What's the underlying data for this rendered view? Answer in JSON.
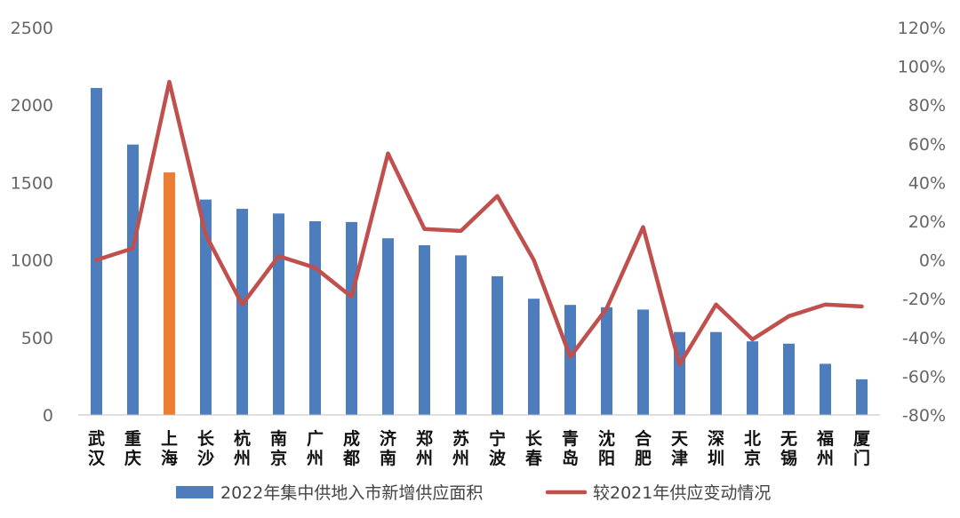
{
  "chart_data": {
    "type": "bar+line",
    "title": "",
    "categories": [
      "武汉",
      "重庆",
      "上海",
      "长沙",
      "杭州",
      "南京",
      "广州",
      "成都",
      "济南",
      "郑州",
      "苏州",
      "宁波",
      "长春",
      "青岛",
      "沈阳",
      "合肥",
      "天津",
      "深圳",
      "北京",
      "无锡",
      "福州",
      "厦门"
    ],
    "series": [
      {
        "name": "2022年集中供地入市新增供应面积",
        "type": "bar",
        "axis": "left",
        "color": "#4E7DBE",
        "highlight": {
          "index": 2,
          "color": "#ED7D31"
        },
        "values": [
          2110,
          1745,
          1565,
          1390,
          1330,
          1300,
          1250,
          1245,
          1140,
          1095,
          1030,
          895,
          750,
          710,
          695,
          680,
          535,
          535,
          475,
          460,
          330,
          230
        ]
      },
      {
        "name": "较2021年供应变动情况",
        "type": "line",
        "axis": "right",
        "color": "#C0504D",
        "values": [
          0,
          6,
          92,
          13,
          -23,
          2,
          -4,
          -19,
          55,
          16,
          15,
          33,
          0,
          -50,
          -25,
          17,
          -54,
          -23,
          -41,
          -29,
          -23,
          -24
        ]
      }
    ],
    "y_left": {
      "min": 0,
      "max": 2500,
      "step": 500,
      "ticks": [
        "0",
        "500",
        "1000",
        "1500",
        "2000",
        "2500"
      ]
    },
    "y_right": {
      "min": -80,
      "max": 120,
      "step": 20,
      "unit": "%",
      "ticks": [
        "-80%",
        "-60%",
        "-40%",
        "-20%",
        "0%",
        "20%",
        "40%",
        "60%",
        "80%",
        "100%",
        "120%"
      ]
    },
    "grid": false,
    "legend_position": "bottom"
  }
}
